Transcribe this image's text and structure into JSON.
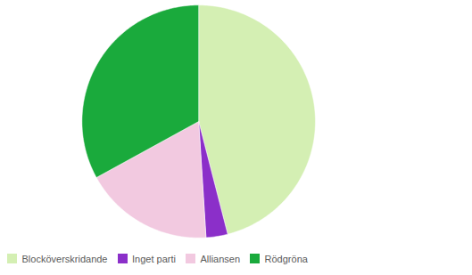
{
  "chart_data": {
    "type": "pie",
    "categories": [
      "Blocköverskridande",
      "Inget parti",
      "Alliansen",
      "Rödgröna"
    ],
    "values": [
      46,
      3,
      18,
      33
    ],
    "colors": [
      "#d4efb3",
      "#8b2fc9",
      "#f2c9e0",
      "#1aaa3c"
    ],
    "legend": "lower left"
  }
}
